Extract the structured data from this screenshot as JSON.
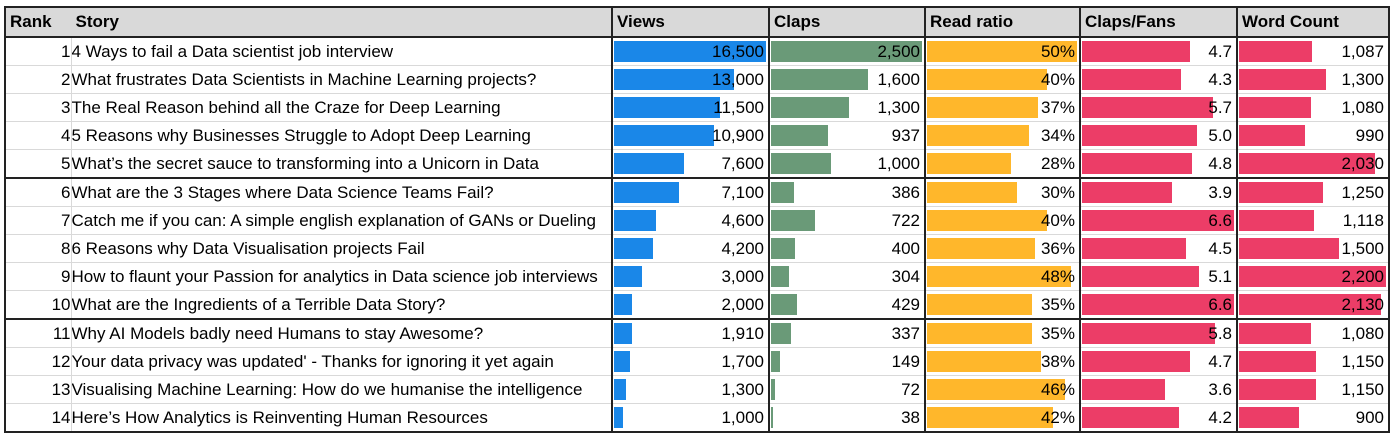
{
  "headers": {
    "rank": "Rank",
    "story": "Story",
    "views": "Views",
    "claps": "Claps",
    "read_ratio": "Read ratio",
    "claps_fans": "Claps/Fans",
    "word_count": "Word Count"
  },
  "colors": {
    "views": "#1a87e8",
    "claps": "#6a9a78",
    "read_ratio": "#ffb72b",
    "claps_fans": "#ec3d67",
    "word_count": "#ec3d67",
    "header_bg": "#d9d9d9"
  },
  "bar_max": {
    "views": 16500,
    "claps": 2500,
    "read_ratio": 0.5,
    "claps_fans": 6.6,
    "word_count": 2200
  },
  "rows": [
    {
      "rank": "1",
      "story": "4 Ways to fail a Data scientist job interview",
      "views": 16500,
      "views_text": "16,500",
      "claps": 2500,
      "claps_text": "2,500",
      "read_ratio": 0.5,
      "read_ratio_text": "50%",
      "claps_fans": 4.7,
      "claps_fans_text": "4.7",
      "word_count": 1087,
      "word_count_text": "1,087"
    },
    {
      "rank": "2",
      "story": "What frustrates Data Scientists in Machine Learning projects?",
      "views": 13000,
      "views_text": "13,000",
      "claps": 1600,
      "claps_text": "1,600",
      "read_ratio": 0.4,
      "read_ratio_text": "40%",
      "claps_fans": 4.3,
      "claps_fans_text": "4.3",
      "word_count": 1300,
      "word_count_text": "1,300"
    },
    {
      "rank": "3",
      "story": "The Real Reason behind all the Craze for Deep Learning",
      "views": 11500,
      "views_text": "11,500",
      "claps": 1300,
      "claps_text": "1,300",
      "read_ratio": 0.37,
      "read_ratio_text": "37%",
      "claps_fans": 5.7,
      "claps_fans_text": "5.7",
      "word_count": 1080,
      "word_count_text": "1,080"
    },
    {
      "rank": "4",
      "story": "5 Reasons why Businesses Struggle to Adopt Deep Learning",
      "views": 10900,
      "views_text": "10,900",
      "claps": 937,
      "claps_text": "937",
      "read_ratio": 0.34,
      "read_ratio_text": "34%",
      "claps_fans": 5.0,
      "claps_fans_text": "5.0",
      "word_count": 990,
      "word_count_text": "990"
    },
    {
      "rank": "5",
      "story": "What’s the secret sauce to transforming into a Unicorn in Data",
      "views": 7600,
      "views_text": "7,600",
      "claps": 1000,
      "claps_text": "1,000",
      "read_ratio": 0.28,
      "read_ratio_text": "28%",
      "claps_fans": 4.8,
      "claps_fans_text": "4.8",
      "word_count": 2030,
      "word_count_text": "2,030"
    },
    {
      "rank": "6",
      "story": "What are the 3 Stages where Data Science Teams Fail?",
      "views": 7100,
      "views_text": "7,100",
      "claps": 386,
      "claps_text": "386",
      "read_ratio": 0.3,
      "read_ratio_text": "30%",
      "claps_fans": 3.9,
      "claps_fans_text": "3.9",
      "word_count": 1250,
      "word_count_text": "1,250"
    },
    {
      "rank": "7",
      "story": "Catch me if you can: A simple english explanation of GANs or Dueling",
      "views": 4600,
      "views_text": "4,600",
      "claps": 722,
      "claps_text": "722",
      "read_ratio": 0.4,
      "read_ratio_text": "40%",
      "claps_fans": 6.6,
      "claps_fans_text": "6.6",
      "word_count": 1118,
      "word_count_text": "1,118"
    },
    {
      "rank": "8",
      "story": "6 Reasons why Data Visualisation projects Fail",
      "views": 4200,
      "views_text": "4,200",
      "claps": 400,
      "claps_text": "400",
      "read_ratio": 0.36,
      "read_ratio_text": "36%",
      "claps_fans": 4.5,
      "claps_fans_text": "4.5",
      "word_count": 1500,
      "word_count_text": "1,500"
    },
    {
      "rank": "9",
      "story": "How to flaunt your Passion for analytics in Data science job interviews",
      "views": 3000,
      "views_text": "3,000",
      "claps": 304,
      "claps_text": "304",
      "read_ratio": 0.48,
      "read_ratio_text": "48%",
      "claps_fans": 5.1,
      "claps_fans_text": "5.1",
      "word_count": 2200,
      "word_count_text": "2,200"
    },
    {
      "rank": "10",
      "story": "What are the Ingredients of a Terrible Data Story?",
      "views": 2000,
      "views_text": "2,000",
      "claps": 429,
      "claps_text": "429",
      "read_ratio": 0.35,
      "read_ratio_text": "35%",
      "claps_fans": 6.6,
      "claps_fans_text": "6.6",
      "word_count": 2130,
      "word_count_text": "2,130"
    },
    {
      "rank": "11",
      "story": "Why AI Models badly need Humans to stay Awesome?",
      "views": 1910,
      "views_text": "1,910",
      "claps": 337,
      "claps_text": "337",
      "read_ratio": 0.35,
      "read_ratio_text": "35%",
      "claps_fans": 5.8,
      "claps_fans_text": "5.8",
      "word_count": 1080,
      "word_count_text": "1,080"
    },
    {
      "rank": "12",
      "story": "Your data privacy was updated' - Thanks for ignoring it yet again",
      "views": 1700,
      "views_text": "1,700",
      "claps": 149,
      "claps_text": "149",
      "read_ratio": 0.38,
      "read_ratio_text": "38%",
      "claps_fans": 4.7,
      "claps_fans_text": "4.7",
      "word_count": 1150,
      "word_count_text": "1,150"
    },
    {
      "rank": "13",
      "story": "Visualising Machine Learning: How do we humanise the intelligence",
      "views": 1300,
      "views_text": "1,300",
      "claps": 72,
      "claps_text": "72",
      "read_ratio": 0.46,
      "read_ratio_text": "46%",
      "claps_fans": 3.6,
      "claps_fans_text": "3.6",
      "word_count": 1150,
      "word_count_text": "1,150"
    },
    {
      "rank": "14",
      "story": "Here’s How Analytics is Reinventing Human Resources",
      "views": 1000,
      "views_text": "1,000",
      "claps": 38,
      "claps_text": "38",
      "read_ratio": 0.42,
      "read_ratio_text": "42%",
      "claps_fans": 4.2,
      "claps_fans_text": "4.2",
      "word_count": 900,
      "word_count_text": "900"
    }
  ]
}
